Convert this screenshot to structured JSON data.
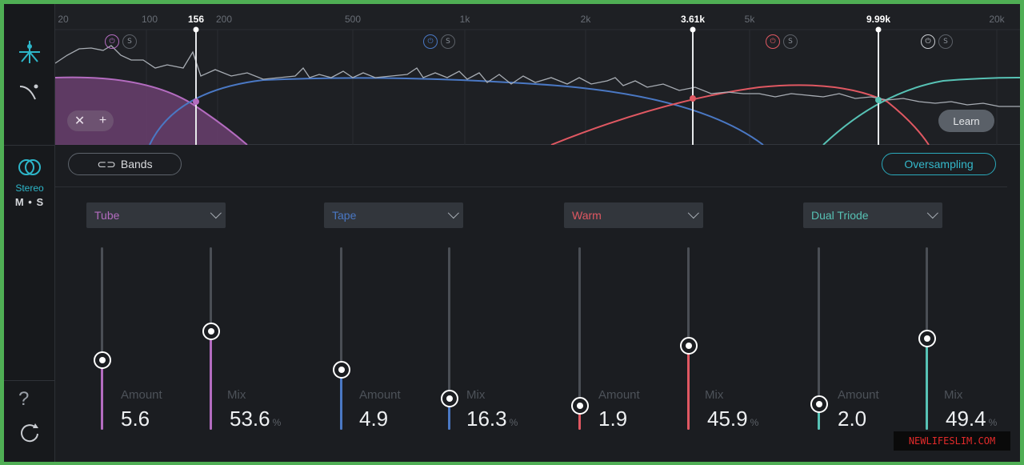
{
  "freq_ruler": {
    "ticks": [
      "20",
      "100",
      "156",
      "200",
      "500",
      "1k",
      "2k",
      "3.61k",
      "5k",
      "9.99k",
      "20k"
    ]
  },
  "sidebar": {
    "stereo_label": "Stereo",
    "ms_label": "M • S",
    "help_label": "?",
    "icons": [
      "spectrum-icon",
      "curve-icon",
      "stereo-rings-icon",
      "help-icon",
      "history-icon"
    ]
  },
  "spectrum": {
    "learn_label": "Learn",
    "remove_glyph": "✕",
    "add_glyph": "+",
    "solo_glyph": "S"
  },
  "toolbar": {
    "bands_label": "Bands",
    "oversampling_label": "Oversampling"
  },
  "colors": {
    "band1": "#b46cc0",
    "band2": "#4a78c4",
    "band3": "#e05862",
    "band4": "#57c2b5",
    "accent": "#2db6c9"
  },
  "bands": [
    {
      "type": "Tube",
      "amount_label": "Amount",
      "amount": "5.6",
      "amount_level": 0.38,
      "mix_label": "Mix",
      "mix": "53.6",
      "mix_unit": "%",
      "mix_level": 0.54
    },
    {
      "type": "Tape",
      "amount_label": "Amount",
      "amount": "4.9",
      "amount_level": 0.33,
      "mix_label": "Mix",
      "mix": "16.3",
      "mix_unit": "%",
      "mix_level": 0.17
    },
    {
      "type": "Warm",
      "amount_label": "Amount",
      "amount": "1.9",
      "amount_level": 0.13,
      "mix_label": "Mix",
      "mix": "45.9",
      "mix_unit": "%",
      "mix_level": 0.46
    },
    {
      "type": "Dual Triode",
      "amount_label": "Amount",
      "amount": "2.0",
      "amount_level": 0.14,
      "mix_label": "Mix",
      "mix": "49.4",
      "mix_unit": "%",
      "mix_level": 0.5
    }
  ],
  "watermark": "NEWLIFESLIM.COM"
}
